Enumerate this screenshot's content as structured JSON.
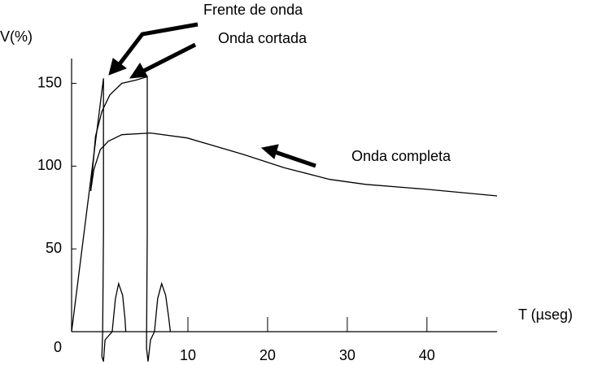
{
  "chart_data": {
    "type": "line",
    "ylabel": "V(%)",
    "xlabel": "T (µseg)",
    "annotations": [
      "Frente de onda",
      "Onda cortada",
      "Onda completa"
    ],
    "xlim": [
      -4.6,
      48.8
    ],
    "ylim": [
      0,
      165
    ],
    "xticks": [
      10,
      20,
      30,
      40
    ],
    "yticks": [
      0,
      50,
      100,
      150
    ],
    "series": [
      {
        "color": "#000000",
        "x": [
          -4.6,
          -0.6,
          -0.6,
          -0.7,
          -0.8,
          -0.6,
          -0.4,
          0.5,
          0.9,
          1.3,
          1.8,
          2.1,
          2.2
        ],
        "values": [
          0,
          153,
          60,
          0,
          -15,
          -18,
          -5,
          0,
          20,
          29,
          22,
          8,
          0
        ]
      },
      {
        "color": "#000000",
        "x": [
          -2.2,
          -1.6,
          -0.8,
          0.2,
          1.7,
          3.5,
          4.9,
          4.9,
          4.8,
          5.0,
          5.3,
          5.8,
          6.2,
          6.7,
          7.2,
          7.6,
          7.8
        ],
        "values": [
          85,
          118,
          133,
          143,
          150,
          152,
          154,
          60,
          -10,
          -18,
          -5,
          0,
          20,
          29,
          22,
          8,
          0
        ]
      },
      {
        "color": "#000000",
        "x": [
          -2.2,
          -1.8,
          -1,
          0,
          1.7,
          5.3,
          9.9,
          17,
          22.1,
          27.8,
          32.3,
          40,
          48.8
        ],
        "values": [
          85,
          98,
          110,
          115,
          119,
          120,
          117,
          107,
          99,
          92,
          89,
          86,
          82
        ]
      }
    ]
  }
}
